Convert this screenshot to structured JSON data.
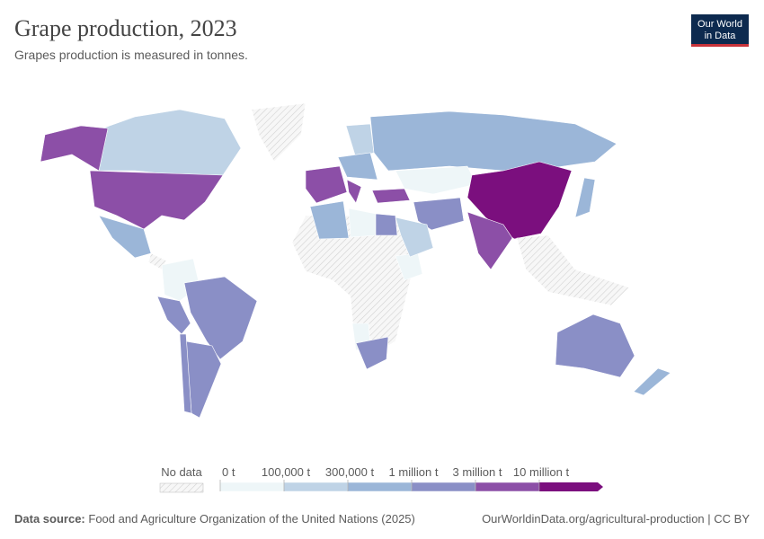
{
  "header": {
    "title": "Grape production, 2023",
    "subtitle": "Grapes production is measured in tonnes."
  },
  "logo": {
    "line1": "Our World",
    "line2": "in Data"
  },
  "legend": {
    "no_data": "No data",
    "thresholds": [
      "0 t",
      "100,000 t",
      "300,000 t",
      "1 million t",
      "3 million t",
      "10 million t"
    ],
    "colors": [
      "#eef6f8",
      "#bfd3e6",
      "#9bb6d8",
      "#8a8fc6",
      "#8c4fa7",
      "#7b0f7e"
    ]
  },
  "footer": {
    "source_label": "Data source:",
    "source": "Food and Agriculture Organization of the United Nations (2025)",
    "url": "OurWorldinData.org/agricultural-production | CC BY"
  }
}
